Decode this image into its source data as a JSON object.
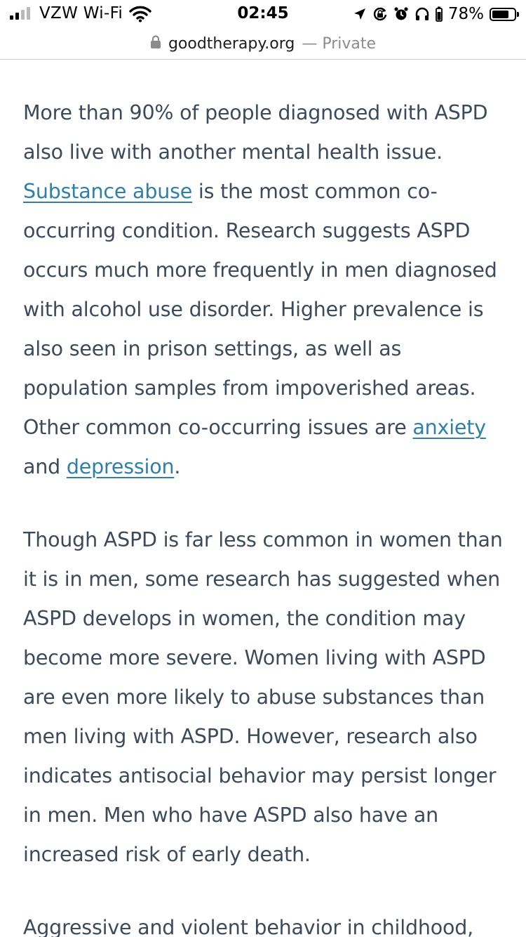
{
  "status_bar": {
    "carrier": "VZW Wi-Fi",
    "time": "02:45",
    "battery_percent": "78%",
    "battery_level": 0.78,
    "icons": [
      "signal-icon",
      "wifi-icon",
      "location-arrow-icon",
      "rotation-lock-icon",
      "alarm-icon",
      "headphones-icon",
      "battery-icon"
    ]
  },
  "url_bar": {
    "domain": "goodtherapy.org",
    "privacy": "— Private",
    "icon": "lock-icon"
  },
  "article": {
    "p1": {
      "text1": "More than 90% of people diagnosed with ASPD also live with another mental health issue. ",
      "link1": "Substance abuse",
      "text2": " is the most common co-occurring condition. Research suggests ASPD occurs much more frequently in men diagnosed with alcohol use disorder. Higher prevalence is also seen in prison settings, as well as population samples from impoverished areas. Other common co-occurring issues are ",
      "link2": "anxiety",
      "text3": " and ",
      "link3": "depression",
      "text4": "."
    },
    "p2": "Though ASPD is far less common in women than it is in men, some research has suggested when ASPD develops in women, the condition may become more severe. Women living with ASPD are even more likely to abuse substances than men living with ASPD. However, research also indicates antisocial behavior may persist longer in men. Men who have ASPD also have an increased risk of early death.",
    "p3": "Aggressive and violent behavior in childhood,"
  },
  "colors": {
    "body_text": "#3c4a5c",
    "link": "#2e80a7",
    "url_private": "#8c8c8c"
  }
}
